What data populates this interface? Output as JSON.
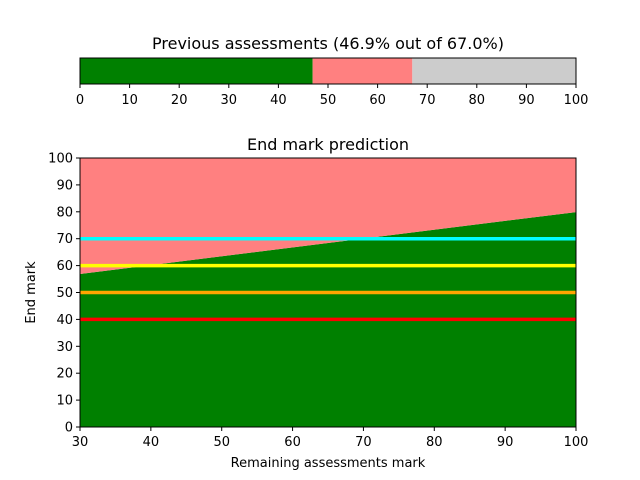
{
  "chart_data": [
    {
      "type": "bar",
      "orientation": "horizontal-stacked",
      "title": "Previous assessments (46.9% out of 67.0%)",
      "xlim": [
        0,
        100
      ],
      "xticks": [
        "0",
        "10",
        "20",
        "30",
        "40",
        "50",
        "60",
        "70",
        "80",
        "90",
        "100"
      ],
      "segments": [
        {
          "start": 0,
          "end": 46.9,
          "color": "#008000"
        },
        {
          "start": 46.9,
          "end": 67.0,
          "color": "#ff8080"
        },
        {
          "start": 67.0,
          "end": 100,
          "color": "#cccccc"
        }
      ]
    },
    {
      "type": "area",
      "title": "End mark prediction",
      "xlabel": "Remaining assessments mark",
      "ylabel": "End mark",
      "xlim": [
        30,
        100
      ],
      "ylim": [
        0,
        100
      ],
      "xticks": [
        "30",
        "40",
        "50",
        "60",
        "70",
        "80",
        "90",
        "100"
      ],
      "yticks": [
        "0",
        "10",
        "20",
        "30",
        "40",
        "50",
        "60",
        "70",
        "80",
        "90",
        "100"
      ],
      "series": [
        {
          "fill": "below",
          "color": "#008000",
          "x": [
            30,
            100
          ],
          "y": [
            56.9,
            79.9
          ]
        },
        {
          "fill": "above",
          "color": "#ff8080",
          "x": [
            30,
            100
          ],
          "y": [
            56.9,
            79.9
          ]
        }
      ],
      "hlines": [
        {
          "y": 70,
          "color": "#00ffff"
        },
        {
          "y": 60,
          "color": "#ffff00"
        },
        {
          "y": 50,
          "color": "#ffa500"
        },
        {
          "y": 40,
          "color": "#ff0000"
        }
      ]
    }
  ]
}
